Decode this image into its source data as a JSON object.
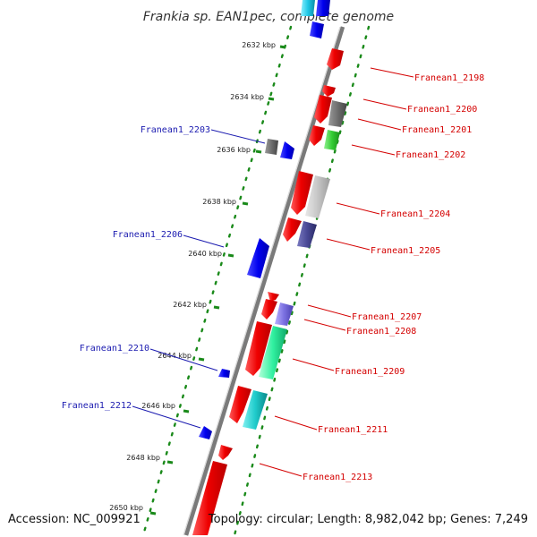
{
  "title": "Frankia sp. EAN1pec, complete genome",
  "footer": {
    "accession": "Accession: NC_009921",
    "summary": "Topology: circular; Length: 8,982,042 bp; Genes: 7,249"
  },
  "colors": {
    "backbone": "#7a7a7a",
    "forward_label": "#1b1bb0",
    "reverse_label": "#d40000",
    "tick_dots": "#1a8a1a"
  },
  "ticks": [
    "2632 kbp",
    "2634 kbp",
    "2636 kbp",
    "2638 kbp",
    "2640 kbp",
    "2642 kbp",
    "2644 kbp",
    "2646 kbp",
    "2648 kbp",
    "2650 kbp"
  ],
  "gene_labels": {
    "left": [
      "Franean1_2203",
      "Franean1_2206",
      "Franean1_2210",
      "Franean1_2212"
    ],
    "right": [
      "Franean1_2198",
      "Franean1_2200",
      "Franean1_2201",
      "Franean1_2202",
      "Franean1_2204",
      "Franean1_2205",
      "Franean1_2207",
      "Franean1_2208",
      "Franean1_2209",
      "Franean1_2211",
      "Franean1_2213"
    ]
  }
}
